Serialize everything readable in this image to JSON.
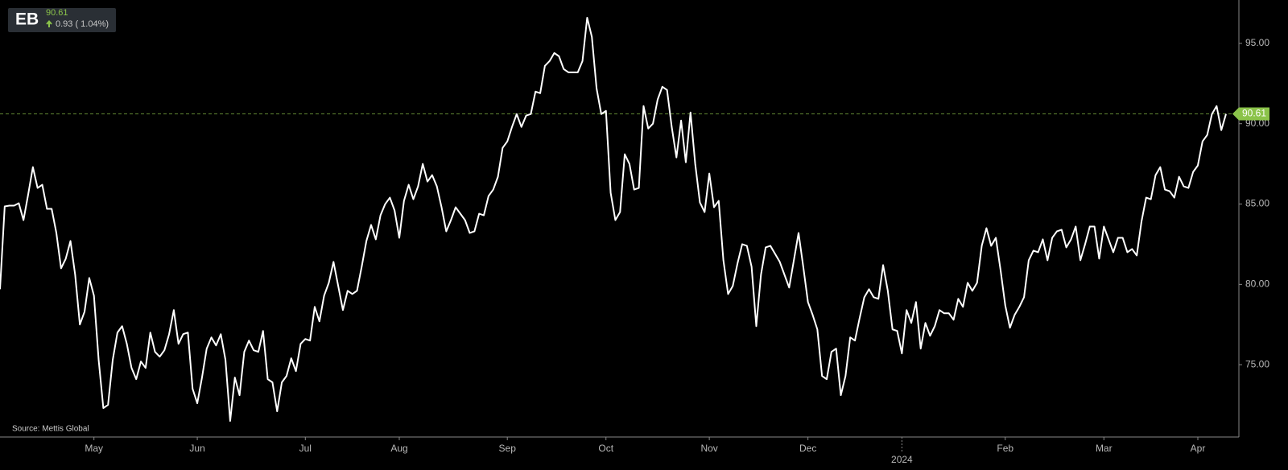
{
  "chart_data": {
    "type": "line",
    "title": "EB",
    "price": 90.61,
    "change": "0.93 ( 1.04%)",
    "source": "Source: Mettis Global",
    "color": "#ffffff",
    "price_color": "#8bc34a",
    "ylim": [
      70.5,
      97.7
    ],
    "yticks": [
      {
        "value": 75,
        "label": "75.00"
      },
      {
        "value": 80,
        "label": "80.00"
      },
      {
        "value": 85,
        "label": "85.00"
      },
      {
        "value": 90,
        "label": "90.00"
      },
      {
        "value": 95,
        "label": "95.00"
      }
    ],
    "categories": [
      null,
      null,
      null,
      null,
      null,
      null,
      null,
      null,
      null,
      null,
      null,
      null,
      null,
      null,
      null,
      null,
      null,
      null,
      null,
      null,
      "May",
      null,
      null,
      null,
      null,
      null,
      null,
      null,
      null,
      null,
      null,
      null,
      null,
      null,
      null,
      null,
      null,
      null,
      null,
      null,
      null,
      null,
      "Jun",
      null,
      null,
      null,
      null,
      null,
      null,
      null,
      null,
      null,
      null,
      null,
      null,
      null,
      null,
      null,
      null,
      null,
      null,
      null,
      null,
      null,
      null,
      "Jul",
      null,
      null,
      null,
      null,
      null,
      null,
      null,
      null,
      null,
      null,
      null,
      null,
      null,
      null,
      null,
      null,
      null,
      null,
      null,
      "Aug",
      null,
      null,
      null,
      null,
      null,
      null,
      null,
      null,
      null,
      null,
      null,
      null,
      null,
      null,
      null,
      null,
      null,
      null,
      null,
      null,
      null,
      null,
      "Sep",
      null,
      null,
      null,
      null,
      null,
      null,
      null,
      null,
      null,
      null,
      null,
      null,
      null,
      null,
      null,
      null,
      null,
      null,
      null,
      null,
      "Oct",
      null,
      null,
      null,
      null,
      null,
      null,
      null,
      null,
      null,
      null,
      null,
      null,
      null,
      null,
      null,
      null,
      null,
      null,
      null,
      null,
      null,
      "Nov",
      null,
      null,
      null,
      null,
      null,
      null,
      null,
      null,
      null,
      null,
      null,
      null,
      null,
      null,
      null,
      null,
      null,
      null,
      null,
      null,
      "Dec",
      null,
      null,
      null,
      null,
      null,
      null,
      null,
      null,
      null,
      null,
      null,
      null,
      null,
      null,
      null,
      null,
      null,
      null,
      null,
      "2024",
      null,
      null,
      null,
      null,
      null,
      null,
      null,
      null,
      null,
      null,
      null,
      null,
      null,
      null,
      null,
      null,
      null,
      null,
      null,
      null,
      null,
      "Feb",
      null,
      null,
      null,
      null,
      null,
      null,
      null,
      null,
      null,
      null,
      null,
      null,
      null,
      null,
      null,
      null,
      null,
      null,
      null,
      null,
      "Mar",
      null,
      null,
      null,
      null,
      null,
      null,
      null,
      null,
      null,
      null,
      null,
      null,
      null,
      null,
      null,
      null,
      null,
      null,
      null,
      "Apr",
      null,
      null,
      null,
      null,
      null,
      null
    ],
    "values": [
      79.7,
      84.85,
      84.9,
      84.9,
      85.05,
      84.0,
      85.6,
      87.3,
      86.0,
      86.2,
      84.7,
      84.7,
      83.2,
      81.0,
      81.6,
      82.7,
      80.6,
      77.5,
      78.3,
      80.4,
      79.3,
      75.3,
      72.3,
      72.5,
      75.3,
      77.0,
      77.4,
      76.3,
      74.8,
      74.1,
      75.2,
      74.8,
      77.0,
      75.8,
      75.5,
      75.9,
      76.9,
      78.4,
      76.3,
      76.9,
      77.0,
      73.5,
      72.6,
      74.2,
      76.0,
      76.7,
      76.2,
      76.9,
      75.3,
      71.5,
      74.2,
      73.1,
      75.8,
      76.5,
      75.9,
      75.8,
      77.1,
      74.1,
      73.9,
      72.1,
      73.9,
      74.3,
      75.4,
      74.6,
      76.3,
      76.6,
      76.5,
      78.6,
      77.7,
      79.3,
      80.1,
      81.4,
      79.9,
      78.4,
      79.6,
      79.4,
      79.6,
      81.1,
      82.7,
      83.7,
      82.8,
      84.3,
      85.0,
      85.4,
      84.6,
      82.9,
      85.2,
      86.2,
      85.3,
      86.1,
      87.5,
      86.4,
      86.8,
      86.1,
      84.8,
      83.3,
      84.0,
      84.8,
      84.4,
      84.0,
      83.2,
      83.3,
      84.4,
      84.3,
      85.5,
      85.9,
      86.7,
      88.5,
      88.9,
      89.8,
      90.6,
      89.8,
      90.5,
      90.6,
      92.0,
      91.9,
      93.6,
      93.9,
      94.4,
      94.2,
      93.4,
      93.2,
      93.2,
      93.2,
      93.9,
      96.6,
      95.4,
      92.2,
      90.6,
      90.8,
      85.7,
      84.0,
      84.5,
      88.1,
      87.5,
      85.9,
      86.0,
      91.1,
      89.7,
      90.0,
      91.5,
      92.3,
      92.1,
      89.8,
      87.9,
      90.2,
      87.6,
      90.7,
      87.5,
      85.1,
      84.5,
      86.9,
      84.8,
      85.2,
      81.5,
      79.4,
      79.9,
      81.3,
      82.5,
      82.4,
      81.1,
      77.4,
      80.6,
      82.3,
      82.4,
      81.9,
      81.4,
      80.6,
      79.8,
      81.5,
      83.2,
      81.1,
      78.9,
      78.1,
      77.2,
      74.3,
      74.1,
      75.8,
      76.0,
      73.1,
      74.3,
      76.7,
      76.5,
      77.9,
      79.2,
      79.7,
      79.2,
      79.1,
      81.2,
      79.6,
      77.2,
      77.1,
      75.7,
      78.4,
      77.6,
      78.9,
      76.0,
      77.6,
      76.8,
      77.4,
      78.4,
      78.2,
      78.2,
      77.8,
      79.1,
      78.6,
      80.1,
      79.6,
      80.1,
      82.4,
      83.5,
      82.4,
      82.9,
      80.9,
      78.7,
      77.3,
      78.1,
      78.6,
      79.2,
      81.5,
      82.1,
      82.0,
      82.8,
      81.5,
      82.9,
      83.3,
      83.4,
      82.3,
      82.8,
      83.6,
      81.5,
      82.5,
      83.6,
      83.6,
      81.6,
      83.6,
      82.8,
      82.0,
      82.9,
      82.9,
      82.0,
      82.2,
      81.8,
      83.9,
      85.4,
      85.3,
      86.8,
      87.3,
      85.9,
      85.8,
      85.4,
      86.7,
      86.1,
      86.0,
      87.0,
      87.4,
      88.9,
      89.3,
      90.6,
      91.1,
      89.6,
      90.61
    ]
  }
}
